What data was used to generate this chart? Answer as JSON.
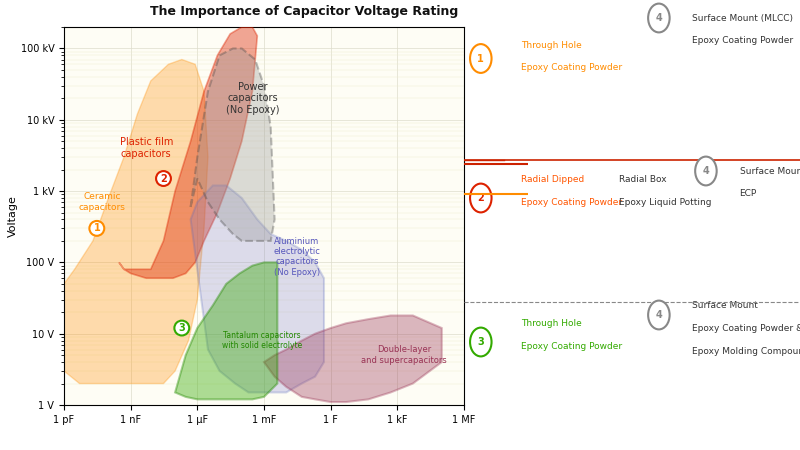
{
  "title": "The Importance of Capacitor Voltage Rating",
  "xlabel_ticks": [
    "1 pF",
    "1 nF",
    "1 μF",
    "1 mF",
    "1 F",
    "1 kF",
    "1 MF"
  ],
  "xlabel_values": [
    1e-12,
    1e-09,
    1e-06,
    0.001,
    1,
    1000.0,
    1000000.0
  ],
  "ylabel_ticks": [
    "1 V",
    "10 V",
    "100 V",
    "1 kV",
    "10 kV",
    "100 kV"
  ],
  "ylabel_values": [
    1,
    10,
    100,
    1000,
    10000,
    100000
  ],
  "xlim": [
    1e-12,
    1000000.0
  ],
  "ylim": [
    1,
    200000
  ],
  "background_color": "#ffffff",
  "ceramic": {
    "label": "Ceramic\ncapacitors",
    "num": "1",
    "color": "#FF8C00",
    "alpha": 0.3,
    "x": [
      1e-12,
      1e-12,
      3e-11,
      8e-10,
      4e-09,
      5e-08,
      4e-07,
      1.2e-06,
      2e-06,
      1e-06,
      3e-07,
      5e-08,
      5e-09,
      1e-09,
      1e-10,
      1e-12
    ],
    "y": [
      50,
      3,
      3,
      3,
      3,
      3,
      3,
      5,
      50,
      1500,
      15000,
      60000,
      70000,
      60000,
      5000,
      50
    ]
  },
  "plastic_film": {
    "label": "Plastic film\ncapacitors",
    "num": "2",
    "color": "#DD2200",
    "alpha": 0.4,
    "x": [
      1e-10,
      1e-09,
      3e-09,
      5e-08,
      3e-07,
      8e-07,
      2e-06,
      5e-05,
      0.0001,
      0.0005,
      0.0005,
      0.0001,
      3e-05,
      5e-06,
      8e-07,
      2e-07,
      5e-08,
      1e-08,
      1e-10
    ],
    "y": [
      70,
      70,
      70,
      70,
      70,
      100,
      200,
      700,
      2000,
      20000,
      150000,
      200000,
      200000,
      150000,
      80000,
      30000,
      5000,
      500,
      70
    ]
  },
  "power": {
    "label": "Power\ncapacitors\n(No Epoxy)",
    "num": "",
    "color": "#999999",
    "alpha": 0.35,
    "x": [
      3e-07,
      8e-07,
      2e-06,
      8e-06,
      3e-05,
      0.0001,
      0.0004,
      0.001,
      0.002,
      0.003,
      0.002,
      0.0008,
      0.0003,
      0.0001,
      3e-05,
      1e-05,
      3e-06,
      8e-07,
      3e-07
    ],
    "y": [
      400,
      2000,
      20000,
      70000,
      100000,
      100000,
      70000,
      30000,
      5000,
      300,
      200,
      200,
      200,
      200,
      200,
      300,
      500,
      800,
      400
    ]
  },
  "aluminium": {
    "label": "Aluminium\nelectrolytic\ncapacitors\n(No Epoxy)",
    "num": "",
    "color": "#7777CC",
    "alpha": 0.25,
    "x": [
      5e-07,
      1e-06,
      3e-06,
      1e-05,
      5e-05,
      0.0002,
      0.001,
      0.005,
      0.02,
      0.1,
      0.5,
      0.5,
      0.1,
      0.01,
      0.003,
      0.0008,
      0.0002,
      5e-05,
      1e-05,
      3e-06,
      5e-07
    ],
    "y": [
      300,
      500,
      700,
      1000,
      800,
      500,
      300,
      200,
      150,
      100,
      50,
      5,
      3,
      2,
      1.5,
      1.5,
      1.5,
      2,
      3,
      5,
      300
    ]
  },
  "tantalum": {
    "label": "Tantalum capacitors\nwith solid electrolyte",
    "num": "3",
    "color": "#33AA00",
    "alpha": 0.4,
    "x": [
      1e-07,
      3e-07,
      1e-06,
      5e-06,
      2e-05,
      0.0001,
      0.0004,
      0.001,
      0.003,
      0.003,
      0.001,
      0.0003,
      0.0001,
      2e-05,
      5e-06,
      1e-06,
      3e-07,
      1e-07
    ],
    "y": [
      1.5,
      1.5,
      1.5,
      1.5,
      1.5,
      1.5,
      1.5,
      1.5,
      2,
      80,
      90,
      90,
      80,
      60,
      30,
      15,
      5,
      1.5
    ]
  },
  "doublelayer": {
    "label": "Double-layer\nand supercapacitors",
    "num": "",
    "color": "#993355",
    "alpha": 0.35,
    "x": [
      0.0005,
      0.002,
      0.01,
      0.05,
      0.2,
      1,
      5,
      30,
      200,
      1000,
      5000,
      1000,
      200,
      30,
      5,
      1,
      0.2,
      0.05,
      0.01,
      0.002,
      0.0005
    ],
    "y": [
      3,
      2,
      1.5,
      1.2,
      1.1,
      1.1,
      1.1,
      1.2,
      1.5,
      2,
      3,
      10,
      15,
      15,
      12,
      10,
      8,
      6,
      5,
      4,
      3
    ]
  }
}
